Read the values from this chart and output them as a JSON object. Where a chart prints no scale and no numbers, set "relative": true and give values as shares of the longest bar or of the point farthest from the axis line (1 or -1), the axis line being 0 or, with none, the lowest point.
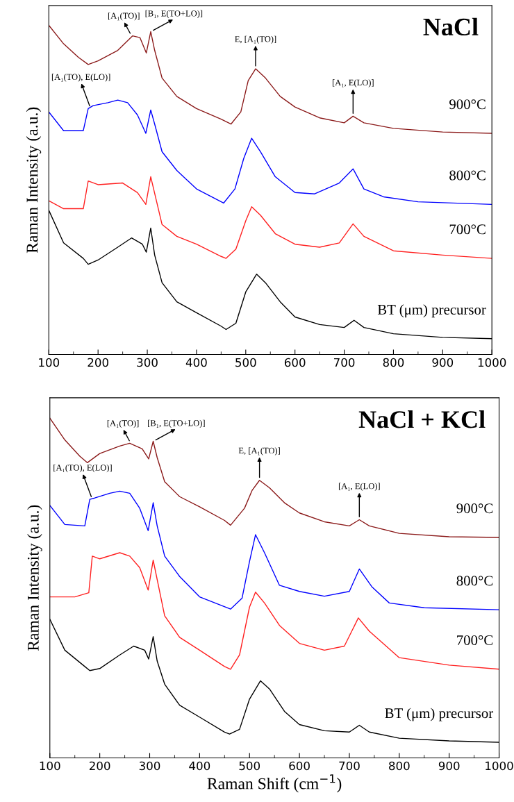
{
  "chart_data": [
    {
      "type": "line",
      "title": "NaCl",
      "ylabel": "Raman Intensity (a.u.)",
      "relative": true,
      "xlim": [
        100,
        1000
      ],
      "xticks": [
        100,
        {
          "value": 150,
          "label": null
        },
        200,
        {
          "value": 250,
          "label": null
        },
        300,
        {
          "value": 350,
          "label": null
        },
        400,
        {
          "value": 450,
          "label": null
        },
        500,
        {
          "value": 550,
          "label": null
        },
        600,
        {
          "value": 650,
          "label": null
        },
        700,
        {
          "value": 750,
          "label": null
        },
        800,
        {
          "value": 850,
          "label": null
        },
        900,
        {
          "value": 950,
          "label": null
        },
        1000
      ],
      "tick_labels": "x",
      "series": [
        {
          "name": "900°C",
          "color": "#8b1a1a",
          "x": [
            100,
            130,
            160,
            180,
            200,
            240,
            270,
            285,
            298,
            307,
            315,
            330,
            360,
            400,
            450,
            470,
            490,
            505,
            520,
            540,
            570,
            600,
            650,
            700,
            718,
            740,
            800,
            900,
            1000
          ],
          "values": [
            1.0,
            0.944,
            0.903,
            0.881,
            0.892,
            0.924,
            0.968,
            0.963,
            0.916,
            0.981,
            0.924,
            0.84,
            0.784,
            0.747,
            0.715,
            0.7,
            0.737,
            0.832,
            0.868,
            0.84,
            0.784,
            0.752,
            0.719,
            0.704,
            0.724,
            0.704,
            0.687,
            0.676,
            0.672
          ]
        },
        {
          "name": "800°C",
          "color": "#0000ff",
          "x": [
            100,
            130,
            170,
            180,
            190,
            220,
            240,
            260,
            280,
            297,
            307,
            315,
            330,
            360,
            400,
            455,
            478,
            496,
            512,
            530,
            560,
            600,
            640,
            690,
            718,
            740,
            780,
            850,
            1000
          ],
          "values": [
            0.737,
            0.68,
            0.68,
            0.747,
            0.756,
            0.765,
            0.773,
            0.765,
            0.728,
            0.672,
            0.743,
            0.7,
            0.616,
            0.559,
            0.503,
            0.46,
            0.503,
            0.596,
            0.657,
            0.616,
            0.54,
            0.492,
            0.488,
            0.521,
            0.564,
            0.503,
            0.479,
            0.464,
            0.456
          ]
        },
        {
          "name": "700°C",
          "color": "#ff2020",
          "x": [
            100,
            130,
            170,
            180,
            200,
            250,
            280,
            297,
            307,
            330,
            360,
            400,
            450,
            460,
            480,
            500,
            512,
            530,
            560,
            600,
            650,
            690,
            718,
            740,
            800,
            900,
            1000
          ],
          "values": [
            0.467,
            0.443,
            0.443,
            0.527,
            0.516,
            0.521,
            0.492,
            0.456,
            0.54,
            0.395,
            0.359,
            0.335,
            0.298,
            0.292,
            0.32,
            0.406,
            0.449,
            0.423,
            0.367,
            0.335,
            0.326,
            0.339,
            0.397,
            0.359,
            0.315,
            0.302,
            0.292
          ]
        },
        {
          "name": "BT (μm) precursor",
          "color": "#000000",
          "x": [
            100,
            130,
            170,
            180,
            200,
            240,
            268,
            290,
            298,
            307,
            315,
            330,
            360,
            400,
            450,
            460,
            480,
            500,
            522,
            540,
            570,
            600,
            650,
            700,
            720,
            740,
            800,
            900,
            1000
          ],
          "values": [
            0.438,
            0.339,
            0.292,
            0.274,
            0.287,
            0.326,
            0.354,
            0.335,
            0.311,
            0.384,
            0.302,
            0.218,
            0.16,
            0.127,
            0.086,
            0.076,
            0.095,
            0.19,
            0.244,
            0.218,
            0.16,
            0.114,
            0.091,
            0.082,
            0.104,
            0.082,
            0.063,
            0.052,
            0.048
          ]
        }
      ],
      "annotations": [
        {
          "text": "[A₁(TO)]",
          "x": 268,
          "y": 0.968
        },
        {
          "text": "[B₁, E(TO+LO)]",
          "x": 307,
          "y": 0.981
        },
        {
          "text": "E, [A₁(TO)]",
          "x": 520,
          "y": 0.868
        },
        {
          "text": "[A₁(TO), E(LO)]",
          "x": 185,
          "y": 0.747
        },
        {
          "text": "[A₁, E(LO)]",
          "x": 718,
          "y": 0.724
        }
      ]
    },
    {
      "type": "line",
      "title": "NaCl + KCl",
      "xlabel": "Raman Shift (cm$^{−1}$)",
      "ylabel": "Raman Intensity (a.u.)",
      "relative": true,
      "xlim": [
        100,
        1000
      ],
      "xticks": [
        100,
        {
          "value": 150,
          "label": null
        },
        200,
        {
          "value": 250,
          "label": null
        },
        300,
        {
          "value": 350,
          "label": null
        },
        400,
        {
          "value": 450,
          "label": null
        },
        500,
        {
          "value": 550,
          "label": null
        },
        600,
        {
          "value": 650,
          "label": null
        },
        700,
        {
          "value": 750,
          "label": null
        },
        800,
        {
          "value": 850,
          "label": null
        },
        900,
        {
          "value": 950,
          "label": null
        },
        1000
      ],
      "tick_labels": "x",
      "series": [
        {
          "name": "900°C",
          "color": "#8b1a1a",
          "x": [
            100,
            130,
            160,
            175,
            200,
            240,
            260,
            285,
            298,
            307,
            315,
            330,
            360,
            400,
            450,
            462,
            490,
            505,
            520,
            540,
            570,
            600,
            650,
            700,
            720,
            740,
            800,
            900,
            1000
          ],
          "values": [
            1.0,
            0.936,
            0.888,
            0.869,
            0.896,
            0.918,
            0.926,
            0.91,
            0.88,
            0.932,
            0.884,
            0.813,
            0.769,
            0.739,
            0.699,
            0.685,
            0.735,
            0.787,
            0.817,
            0.795,
            0.751,
            0.721,
            0.695,
            0.683,
            0.701,
            0.683,
            0.661,
            0.651,
            0.649
          ]
        },
        {
          "name": "800°C",
          "color": "#0000ff",
          "x": [
            100,
            130,
            170,
            180,
            190,
            220,
            240,
            260,
            280,
            297,
            307,
            315,
            330,
            360,
            400,
            462,
            485,
            500,
            512,
            530,
            560,
            600,
            650,
            700,
            720,
            745,
            780,
            850,
            1000
          ],
          "values": [
            0.743,
            0.687,
            0.683,
            0.761,
            0.765,
            0.779,
            0.785,
            0.779,
            0.735,
            0.669,
            0.751,
            0.683,
            0.594,
            0.534,
            0.474,
            0.438,
            0.47,
            0.578,
            0.657,
            0.604,
            0.508,
            0.49,
            0.476,
            0.49,
            0.556,
            0.504,
            0.456,
            0.442,
            0.436
          ]
        },
        {
          "name": "700°C",
          "color": "#ff2020",
          "x": [
            100,
            150,
            178,
            185,
            200,
            240,
            260,
            280,
            297,
            307,
            330,
            360,
            400,
            450,
            462,
            480,
            500,
            512,
            530,
            560,
            600,
            650,
            690,
            718,
            740,
            800,
            900,
            1000
          ],
          "values": [
            0.474,
            0.474,
            0.486,
            0.594,
            0.586,
            0.604,
            0.594,
            0.56,
            0.494,
            0.582,
            0.418,
            0.355,
            0.317,
            0.269,
            0.261,
            0.303,
            0.444,
            0.488,
            0.456,
            0.39,
            0.337,
            0.317,
            0.329,
            0.412,
            0.373,
            0.295,
            0.273,
            0.261
          ]
        },
        {
          "name": "BT (μm) precursor",
          "color": "#000000",
          "x": [
            100,
            130,
            170,
            180,
            200,
            240,
            268,
            290,
            298,
            307,
            315,
            330,
            360,
            400,
            450,
            460,
            480,
            500,
            522,
            540,
            570,
            600,
            650,
            700,
            720,
            740,
            800,
            900,
            1000
          ],
          "values": [
            0.408,
            0.317,
            0.269,
            0.257,
            0.263,
            0.303,
            0.329,
            0.317,
            0.291,
            0.357,
            0.285,
            0.217,
            0.155,
            0.12,
            0.076,
            0.07,
            0.084,
            0.173,
            0.227,
            0.203,
            0.137,
            0.098,
            0.08,
            0.076,
            0.096,
            0.076,
            0.058,
            0.05,
            0.046
          ]
        }
      ],
      "annotations": [
        {
          "text": "[A₁(TO)]",
          "x": 262,
          "y": 0.926
        },
        {
          "text": "[B₁, E(TO+LO)]",
          "x": 307,
          "y": 0.932
        },
        {
          "text": "E, [A₁(TO)]",
          "x": 520,
          "y": 0.817
        },
        {
          "text": "[A₁(TO), E(LO)]",
          "x": 185,
          "y": 0.761
        },
        {
          "text": "[A₁, E(LO)]",
          "x": 720,
          "y": 0.701
        }
      ]
    }
  ]
}
